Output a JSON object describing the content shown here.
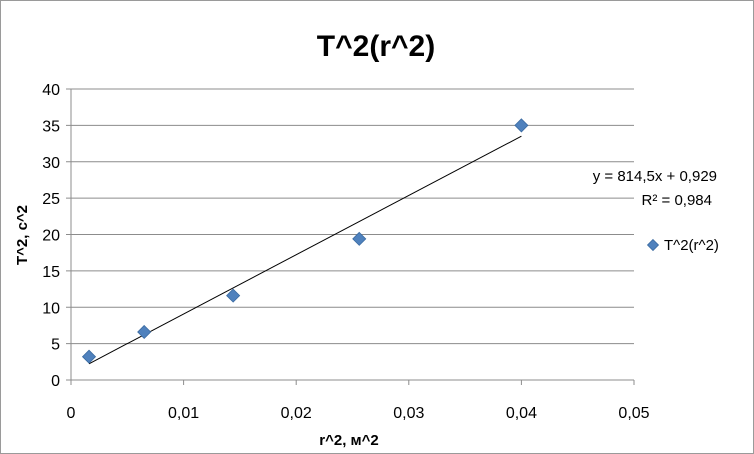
{
  "chart_data": {
    "type": "scatter",
    "title": "T^2(r^2)",
    "xlabel": "r^2, м^2",
    "ylabel": "T^2, с^2",
    "xlim": [
      0,
      0.05
    ],
    "ylim": [
      0,
      40
    ],
    "x_ticks": [
      "0",
      "0,01",
      "0,02",
      "0,03",
      "0,04",
      "0,05"
    ],
    "y_ticks": [
      "0",
      "5",
      "10",
      "15",
      "20",
      "25",
      "30",
      "35",
      "40"
    ],
    "grid": "horizontal",
    "legend_position": "right",
    "series": [
      {
        "name": "T^2(r^2)",
        "color": "#4f81bd",
        "marker": "diamond",
        "x": [
          0.0016,
          0.0065,
          0.0144,
          0.0256,
          0.04
        ],
        "y": [
          3.2,
          6.6,
          11.6,
          19.4,
          35.0
        ]
      }
    ],
    "trendline": {
      "type": "linear",
      "slope": 814.5,
      "intercept": 0.929,
      "equation": "y = 814,5x + 0,929",
      "r_squared": "R² = 0,984",
      "x_range": [
        0.0016,
        0.04
      ]
    }
  }
}
